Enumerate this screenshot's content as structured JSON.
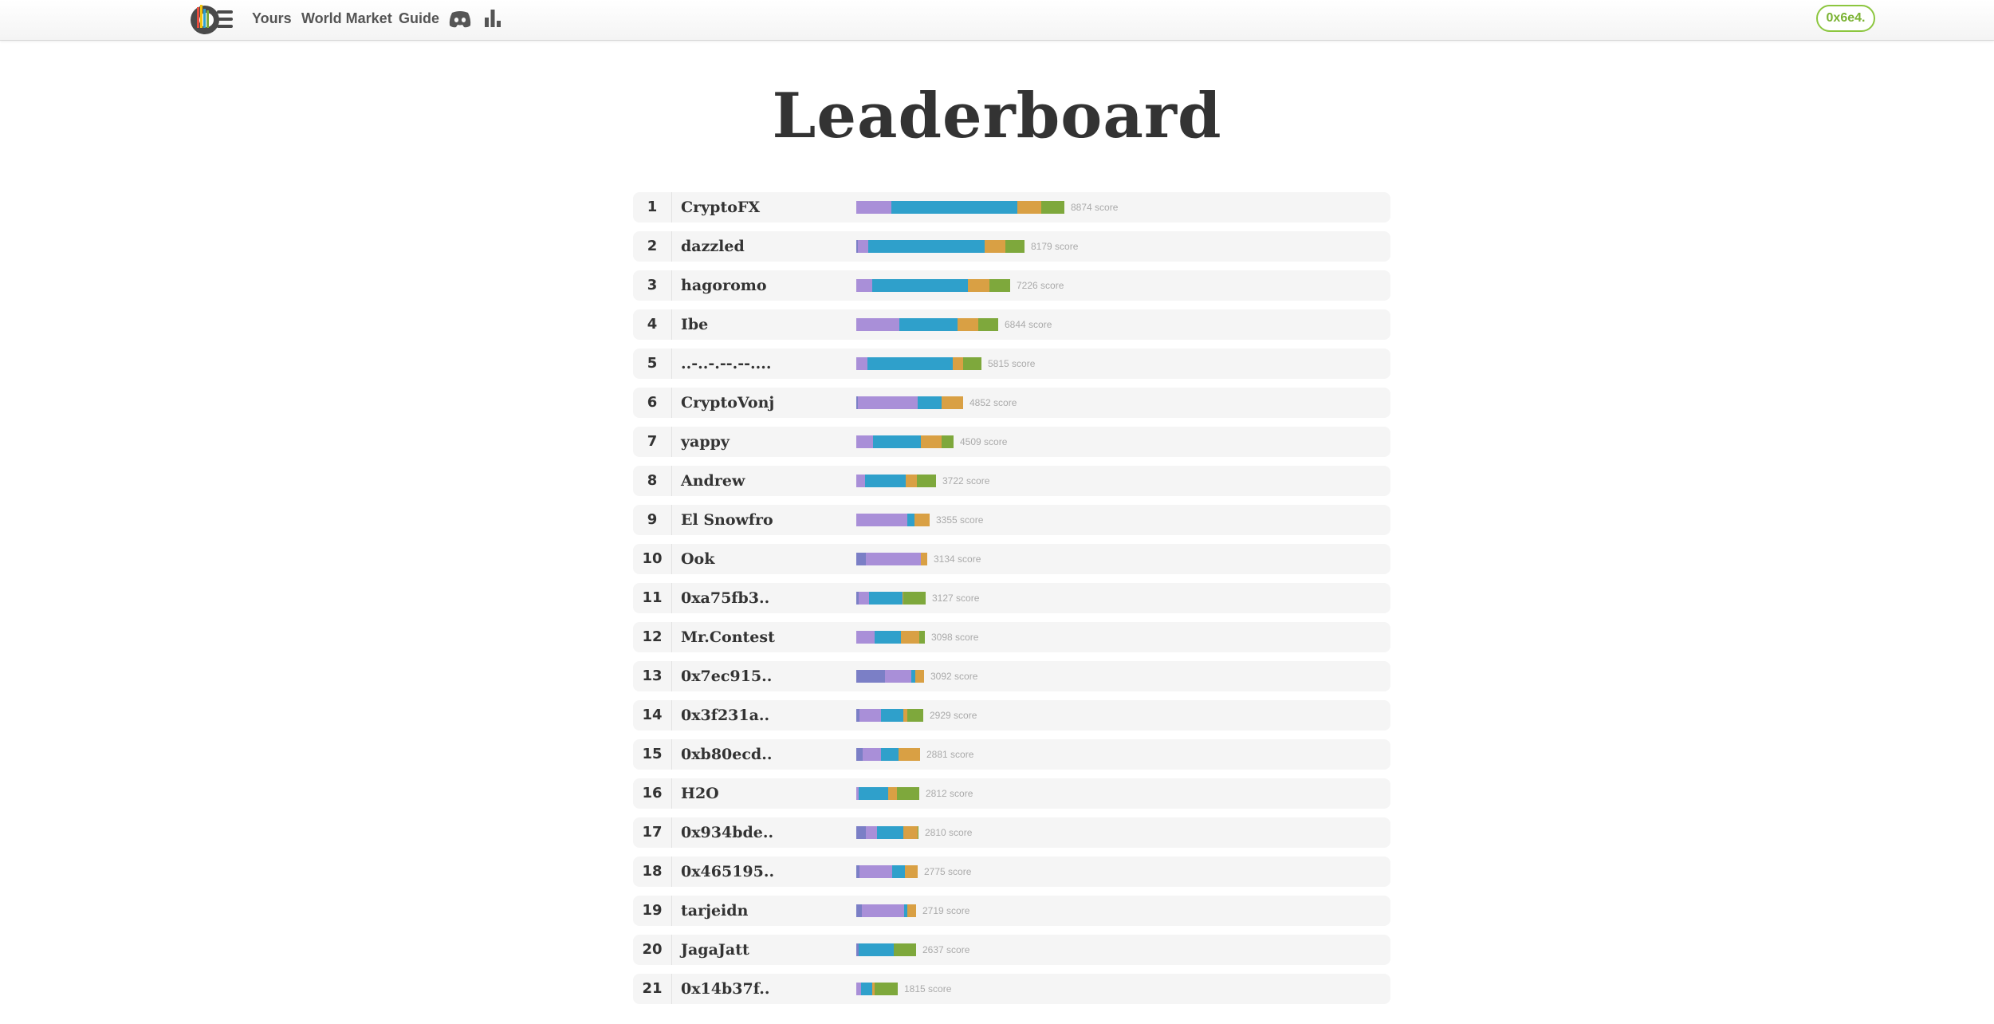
{
  "nav": {
    "links": [
      "Yours",
      "World Market",
      "Guide"
    ],
    "icons": [
      "discord-icon",
      "stats-icon"
    ],
    "account_label": "0x6e4."
  },
  "page": {
    "title": "Leaderboard"
  },
  "colors": {
    "indigo": "#7b7fc6",
    "lavender": "#a98fd8",
    "blue": "#2fa0cb",
    "orange": "#d9a044",
    "green": "#7ea83c",
    "accent": "#8cc63f"
  },
  "score_suffix": "score",
  "leaderboard": [
    {
      "rank": "1",
      "name": "CryptoFX",
      "score": 8874,
      "segments": [
        [
          "lavender",
          950
        ],
        [
          "blue",
          3400
        ],
        [
          "orange",
          650
        ],
        [
          "green",
          620
        ]
      ]
    },
    {
      "rank": "2",
      "name": "dazzled",
      "score": 8179,
      "segments": [
        [
          "indigo",
          50
        ],
        [
          "lavender",
          290
        ],
        [
          "blue",
          3150
        ],
        [
          "orange",
          550
        ],
        [
          "green",
          520
        ]
      ]
    },
    {
      "rank": "3",
      "name": "hagoromo",
      "score": 7226,
      "segments": [
        [
          "lavender",
          420
        ],
        [
          "blue",
          2580
        ],
        [
          "orange",
          570
        ],
        [
          "green",
          550
        ]
      ]
    },
    {
      "rank": "4",
      "name": "Ibe",
      "score": 6844,
      "segments": [
        [
          "lavender",
          1170
        ],
        [
          "blue",
          1580
        ],
        [
          "orange",
          550
        ],
        [
          "green",
          530
        ]
      ]
    },
    {
      "rank": "5",
      "name": "..-..-.--.--....",
      "score": 5815,
      "segments": [
        [
          "lavender",
          300
        ],
        [
          "blue",
          2300
        ],
        [
          "orange",
          270
        ],
        [
          "green",
          500
        ]
      ]
    },
    {
      "rank": "6",
      "name": "CryptoVonj",
      "score": 4852,
      "segments": [
        [
          "indigo",
          50
        ],
        [
          "lavender",
          1620
        ],
        [
          "blue",
          650
        ],
        [
          "orange",
          570
        ]
      ]
    },
    {
      "rank": "7",
      "name": "yappy",
      "score": 4509,
      "segments": [
        [
          "lavender",
          450
        ],
        [
          "blue",
          1280
        ],
        [
          "orange",
          550
        ],
        [
          "green",
          330
        ]
      ]
    },
    {
      "rank": "8",
      "name": "Andrew",
      "score": 3722,
      "segments": [
        [
          "lavender",
          230
        ],
        [
          "blue",
          1100
        ],
        [
          "orange",
          300
        ],
        [
          "green",
          520
        ]
      ]
    },
    {
      "rank": "9",
      "name": "El Snowfro",
      "score": 3355,
      "segments": [
        [
          "lavender",
          1370
        ],
        [
          "blue",
          200
        ],
        [
          "orange",
          400
        ]
      ]
    },
    {
      "rank": "10",
      "name": "Ook",
      "score": 3134,
      "segments": [
        [
          "indigo",
          250
        ],
        [
          "lavender",
          1480
        ],
        [
          "orange",
          180
        ]
      ]
    },
    {
      "rank": "11",
      "name": "0xa75fb3..",
      "score": 3127,
      "segments": [
        [
          "indigo",
          60
        ],
        [
          "lavender",
          280
        ],
        [
          "blue",
          900
        ],
        [
          "orange",
          30
        ],
        [
          "green",
          610
        ]
      ]
    },
    {
      "rank": "12",
      "name": "Mr.Contest",
      "score": 3098,
      "segments": [
        [
          "lavender",
          500
        ],
        [
          "blue",
          700
        ],
        [
          "orange",
          500
        ],
        [
          "green",
          150
        ]
      ]
    },
    {
      "rank": "13",
      "name": "0x7ec915..",
      "score": 3092,
      "segments": [
        [
          "indigo",
          780
        ],
        [
          "lavender",
          720
        ],
        [
          "blue",
          100
        ],
        [
          "orange",
          230
        ]
      ]
    },
    {
      "rank": "14",
      "name": "0x3f231a..",
      "score": 2929,
      "segments": [
        [
          "indigo",
          80
        ],
        [
          "lavender",
          580
        ],
        [
          "blue",
          600
        ],
        [
          "orange",
          100
        ],
        [
          "green",
          420
        ]
      ]
    },
    {
      "rank": "15",
      "name": "0xb80ecd..",
      "score": 2881,
      "segments": [
        [
          "indigo",
          180
        ],
        [
          "lavender",
          500
        ],
        [
          "blue",
          470
        ],
        [
          "orange",
          580
        ]
      ]
    },
    {
      "rank": "16",
      "name": "H2O",
      "score": 2812,
      "segments": [
        [
          "lavender",
          60
        ],
        [
          "blue",
          790
        ],
        [
          "orange",
          230
        ],
        [
          "green",
          600
        ]
      ]
    },
    {
      "rank": "17",
      "name": "0x934bde..",
      "score": 2810,
      "segments": [
        [
          "indigo",
          260
        ],
        [
          "lavender",
          300
        ],
        [
          "blue",
          700
        ],
        [
          "orange",
          380
        ],
        [
          "green",
          30
        ]
      ]
    },
    {
      "rank": "18",
      "name": "0x465195..",
      "score": 2775,
      "segments": [
        [
          "indigo",
          80
        ],
        [
          "lavender",
          880
        ],
        [
          "blue",
          340
        ],
        [
          "orange",
          340
        ]
      ]
    },
    {
      "rank": "19",
      "name": "tarjeidn",
      "score": 2719,
      "segments": [
        [
          "indigo",
          140
        ],
        [
          "lavender",
          1130
        ],
        [
          "blue",
          90
        ],
        [
          "orange",
          240
        ]
      ]
    },
    {
      "rank": "20",
      "name": "JagaJatt",
      "score": 2637,
      "segments": [
        [
          "indigo",
          60
        ],
        [
          "blue",
          950
        ],
        [
          "green",
          600
        ]
      ]
    },
    {
      "rank": "21",
      "name": "0x14b37f..",
      "score": 1815,
      "segments": [
        [
          "lavender",
          120
        ],
        [
          "blue",
          300
        ],
        [
          "orange",
          60
        ],
        [
          "green",
          620
        ]
      ]
    }
  ]
}
